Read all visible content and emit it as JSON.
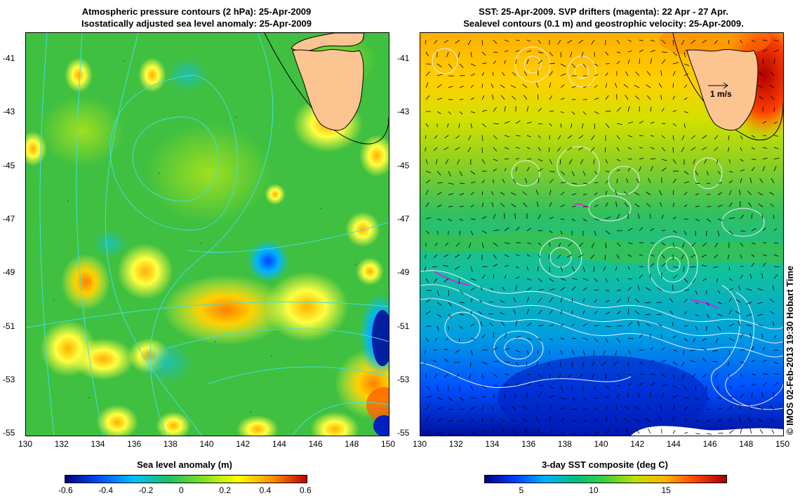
{
  "left_panel": {
    "title_line1": "Atmospheric pressure contours (2 hPa): 25-Apr-2009",
    "title_line2": "Isostatically adjusted sea level anomaly: 25-Apr-2009",
    "colorbar_title": "Sea level anomaly (m)",
    "colorbar_ticks": [
      "-0.6",
      "-0.4",
      "-0.2",
      "0",
      "0.2",
      "0.4",
      "0.6"
    ]
  },
  "right_panel": {
    "title_line1": "SST: 25-Apr-2009. SVP drifters (magenta): 22 Apr - 27 Apr.",
    "title_line2": "Sealevel contours (0.1 m) and geostrophic velocity: 25-Apr-2009.",
    "colorbar_title": "3-day SST composite (deg C)",
    "colorbar_ticks": [
      "5",
      "10",
      "15"
    ],
    "velocity_scale_label": "1 m/s"
  },
  "axes": {
    "x_ticks": [
      "130",
      "132",
      "134",
      "136",
      "138",
      "140",
      "142",
      "144",
      "146",
      "148",
      "150"
    ],
    "y_ticks": [
      "-41",
      "-43",
      "-45",
      "-47",
      "-49",
      "-51",
      "-53",
      "-55"
    ]
  },
  "credit": "© IMOS 02-Feb-2013 19:30 Hobart Time",
  "colors": {
    "land": "#fcc491",
    "sla_scale": [
      "#000080",
      "#0050ff",
      "#00c0ff",
      "#20c060",
      "#80e020",
      "#ffff00",
      "#ff9000",
      "#c00000"
    ],
    "sst_scale": [
      "#000080",
      "#0040ff",
      "#00b0ff",
      "#00c080",
      "#40d040",
      "#c0e000",
      "#ffb000",
      "#ff4000",
      "#a00000"
    ]
  }
}
